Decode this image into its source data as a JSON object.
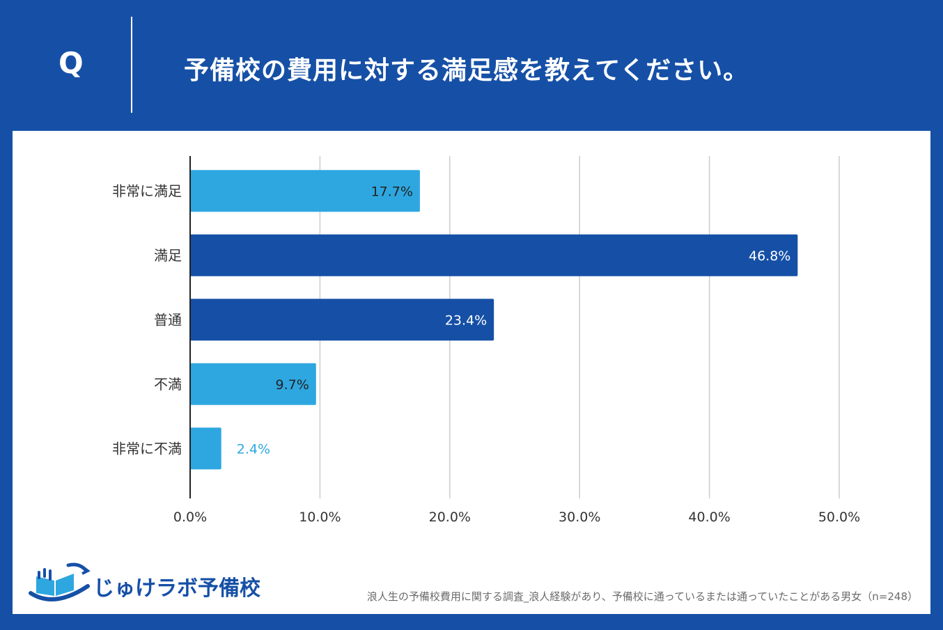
{
  "header": {
    "q_label": "Q",
    "question": "予備校の費用に対する満足感を教えてください。"
  },
  "colors": {
    "background": "#1650A6",
    "light_bar": "#2EA7E0",
    "dark_bar": "#1650A6",
    "grid": "#cccccc"
  },
  "chart_data": {
    "type": "bar",
    "orientation": "horizontal",
    "title": "予備校の費用に対する満足感を教えてください。",
    "categories": [
      "非常に満足",
      "満足",
      "普通",
      "不満",
      "非常に不満"
    ],
    "values": [
      17.7,
      46.8,
      23.4,
      9.7,
      2.4
    ],
    "value_labels": [
      "17.7%",
      "46.8%",
      "23.4%",
      "9.7%",
      "2.4%"
    ],
    "bar_colors": [
      "#2EA7E0",
      "#1650A6",
      "#1650A6",
      "#2EA7E0",
      "#2EA7E0"
    ],
    "xlim": [
      0,
      50
    ],
    "x_ticks": [
      "0.0%",
      "10.0%",
      "20.0%",
      "30.0%",
      "40.0%",
      "50.0%"
    ],
    "xlabel": "",
    "ylabel": "",
    "grid": true
  },
  "logo": {
    "text": "じゅけラボ予備校"
  },
  "footnote": "浪人生の予備校費用に関する調査_浪人経験があり、予備校に通っているまたは通っていたことがある男女（n=248）"
}
